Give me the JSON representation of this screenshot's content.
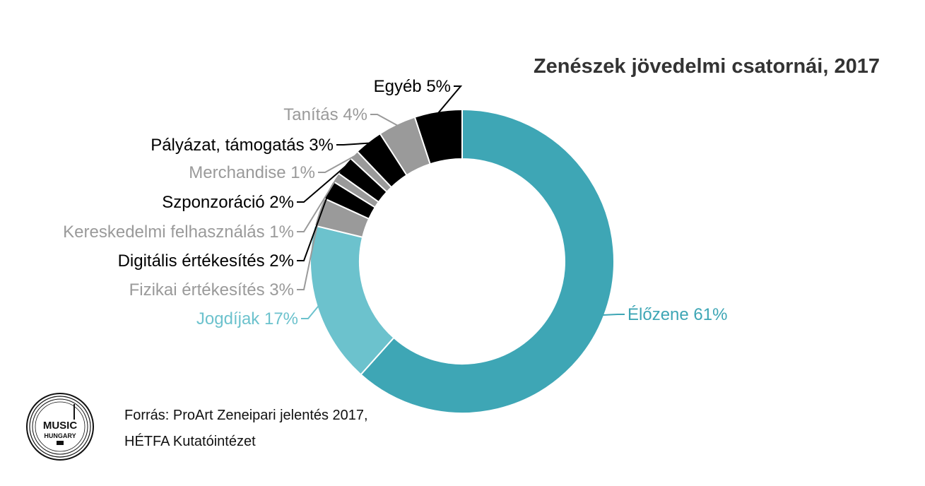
{
  "chart_data": {
    "type": "donut",
    "title": "Zenészek jövedelmi csatornái, 2017",
    "slices": [
      {
        "label": "Élőzene 61%",
        "value": 61,
        "color": "#3ea6b5",
        "label_color": "#3ea6b5"
      },
      {
        "label": "Jogdíjak 17%",
        "value": 17,
        "color": "#6cc2cd",
        "label_color": "#6cc2cd"
      },
      {
        "label": "Fizikai értékesítés 3%",
        "value": 3,
        "color": "#9a9a9a",
        "label_color": "#9a9a9a"
      },
      {
        "label": "Digitális értékesítés 2%",
        "value": 2,
        "color": "#000000",
        "label_color": "#000000"
      },
      {
        "label": "Kereskedelmi felhasználás 1%",
        "value": 1,
        "color": "#9a9a9a",
        "label_color": "#9a9a9a"
      },
      {
        "label": "Szponzoráció 2%",
        "value": 2,
        "color": "#000000",
        "label_color": "#000000"
      },
      {
        "label": "Merchandise 1%",
        "value": 1,
        "color": "#9a9a9a",
        "label_color": "#9a9a9a"
      },
      {
        "label": "Pályázat, támogatás 3%",
        "value": 3,
        "color": "#000000",
        "label_color": "#000000"
      },
      {
        "label": "Tanítás 4%",
        "value": 4,
        "color": "#9a9a9a",
        "label_color": "#9a9a9a"
      },
      {
        "label": "Egyéb 5%",
        "value": 5,
        "color": "#000000",
        "label_color": "#000000"
      }
    ]
  },
  "source": {
    "line1": "Forrás: ProArt Zeneipari jelentés 2017,",
    "line2": "HÉTFA Kutatóintézet"
  },
  "logo": {
    "line1": "MUSIC",
    "line2": "HUNGARY"
  }
}
